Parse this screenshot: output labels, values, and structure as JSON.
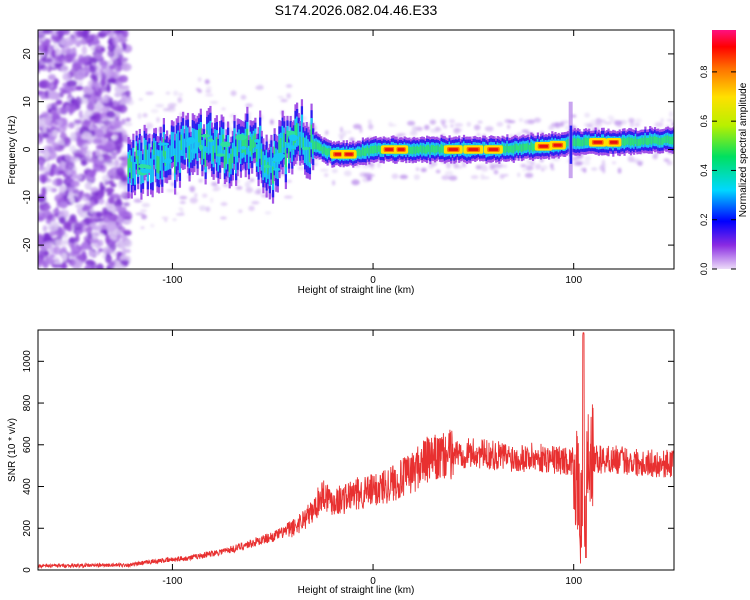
{
  "title": "S174.2026.082.04.46.E33",
  "chart_data": [
    {
      "type": "heatmap",
      "xlabel": "Height of straight line (km)",
      "ylabel": "Frequency (Hz)",
      "xlim": [
        -167,
        150
      ],
      "ylim": [
        -25,
        25
      ],
      "xticks": [
        -100,
        0,
        100
      ],
      "yticks": [
        -20,
        -10,
        0,
        10,
        20
      ],
      "colorbar": {
        "label": "Normalized spectral amplitude",
        "range": [
          0,
          0.97
        ],
        "ticks": [
          0.0,
          0.2,
          0.4,
          0.6,
          0.8
        ]
      },
      "ridge": {
        "x": [
          -120,
          -110,
          -100,
          -90,
          -80,
          -70,
          -60,
          -50,
          -40,
          -30,
          -20,
          -10,
          0,
          10,
          20,
          40,
          60,
          80,
          95,
          100,
          120,
          150
        ],
        "freq": [
          -3,
          -2,
          -1,
          1,
          0,
          -1,
          1,
          -3,
          2,
          1,
          -1,
          -1,
          0,
          0,
          0,
          0,
          0,
          0.5,
          1,
          1.5,
          1.5,
          2
        ]
      }
    },
    {
      "type": "line",
      "xlabel": "Height of straight line (km)",
      "ylabel": "SNR (10 * v/v)",
      "xlim": [
        -167,
        150
      ],
      "ylim": [
        0,
        1150
      ],
      "xticks": [
        -100,
        0,
        100
      ],
      "yticks": [
        0,
        200,
        400,
        600,
        800,
        1000
      ],
      "series": [
        {
          "name": "SNR",
          "color": "#e83030",
          "x": [
            -167,
            -140,
            -120,
            -110,
            -100,
            -90,
            -80,
            -70,
            -60,
            -50,
            -40,
            -30,
            -25,
            -20,
            -15,
            -10,
            -5,
            0,
            5,
            10,
            15,
            20,
            25,
            30,
            35,
            40,
            45,
            50,
            60,
            70,
            80,
            90,
            100,
            103,
            105,
            106,
            108,
            110,
            120,
            130,
            140,
            150
          ],
          "y": [
            20,
            22,
            25,
            40,
            50,
            60,
            80,
            100,
            130,
            160,
            200,
            280,
            370,
            330,
            340,
            360,
            370,
            380,
            400,
            420,
            440,
            470,
            520,
            530,
            540,
            560,
            560,
            560,
            550,
            540,
            540,
            530,
            520,
            300,
            150,
            520,
            540,
            530,
            530,
            520,
            510,
            510
          ]
        }
      ]
    }
  ]
}
